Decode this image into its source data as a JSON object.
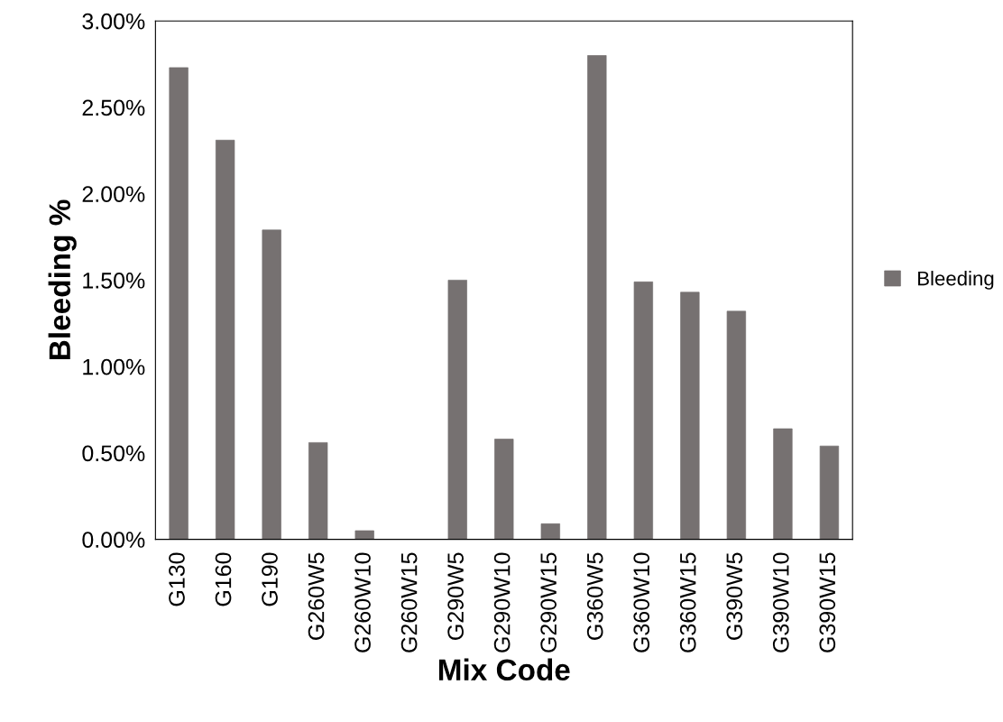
{
  "chart_data": {
    "type": "bar",
    "xlabel": "Mix Code",
    "ylabel": "Bleeding %",
    "categories": [
      "G130",
      "G160",
      "G190",
      "G260W5",
      "G260W10",
      "G260W15",
      "G290W5",
      "G290W10",
      "G290W15",
      "G360W5",
      "G360W10",
      "G360W15",
      "G390W5",
      "G390W10",
      "G390W15"
    ],
    "series": [
      {
        "name": "Bleeding",
        "color": "#767171",
        "values": [
          2.73,
          2.31,
          1.79,
          0.56,
          0.05,
          0,
          1.5,
          0.58,
          0.09,
          2.8,
          1.49,
          1.43,
          1.32,
          0.64,
          0.54
        ]
      }
    ],
    "ylim": [
      0,
      3
    ],
    "yticks": [
      {
        "value": 0,
        "label": "0.00%"
      },
      {
        "value": 0.5,
        "label": "0.50%"
      },
      {
        "value": 1,
        "label": "1.00%"
      },
      {
        "value": 1.5,
        "label": "1.50%"
      },
      {
        "value": 2,
        "label": "2.00%"
      },
      {
        "value": 2.5,
        "label": "2.50%"
      },
      {
        "value": 3,
        "label": "3.00%"
      }
    ],
    "grid": false,
    "legend": "right"
  }
}
